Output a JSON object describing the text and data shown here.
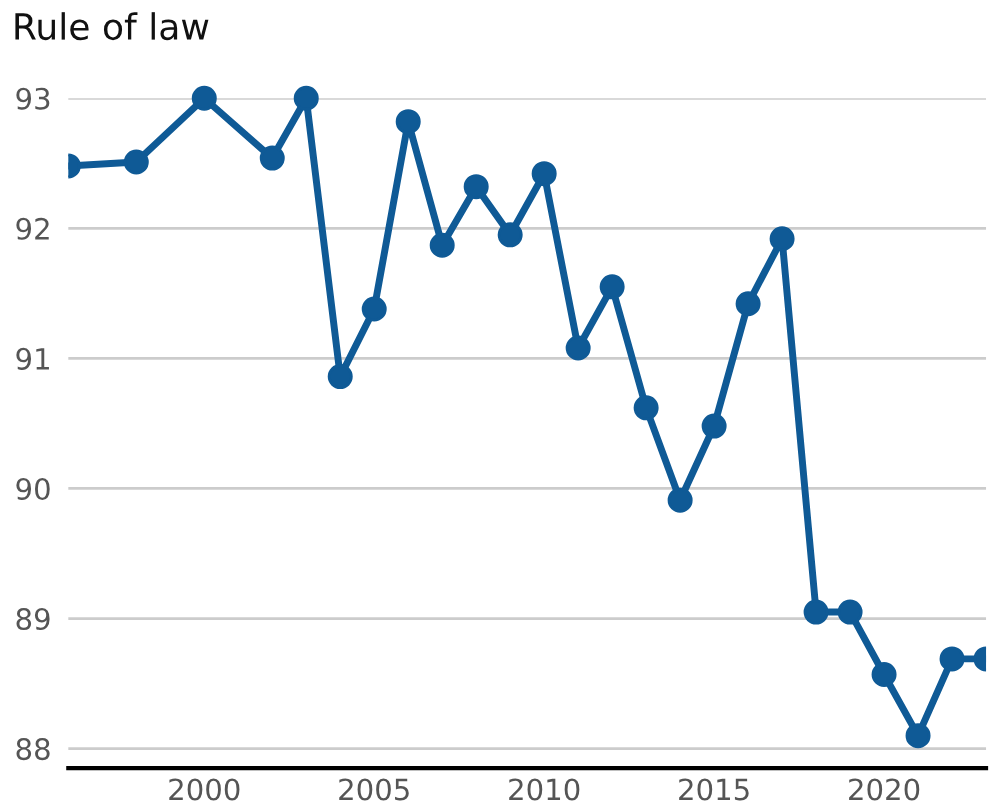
{
  "chart_data": {
    "type": "line",
    "title": "Rule of law",
    "x": [
      1996,
      1998,
      2000,
      2002,
      2003,
      2004,
      2005,
      2006,
      2007,
      2008,
      2009,
      2010,
      2011,
      2012,
      2013,
      2014,
      2015,
      2016,
      2017,
      2018,
      2019,
      2020,
      2021,
      2022,
      2023
    ],
    "series": [
      {
        "color": "#0f5a96",
        "values": [
          92.48,
          92.51,
          93.0,
          92.54,
          93.0,
          90.86,
          91.38,
          92.82,
          91.87,
          92.32,
          91.95,
          92.42,
          91.08,
          91.55,
          90.62,
          89.91,
          90.48,
          91.42,
          91.92,
          89.05,
          89.05,
          88.57,
          88.1,
          88.69,
          88.69
        ]
      }
    ],
    "xlim": [
      1996,
      2023
    ],
    "xticks": [
      2000,
      2005,
      2010,
      2015,
      2020
    ],
    "ylim": [
      87.85,
      93
    ],
    "yticks": [
      88,
      89,
      90,
      91,
      92,
      93
    ],
    "grid": "y",
    "marker": "circle",
    "line_style": "solid"
  }
}
